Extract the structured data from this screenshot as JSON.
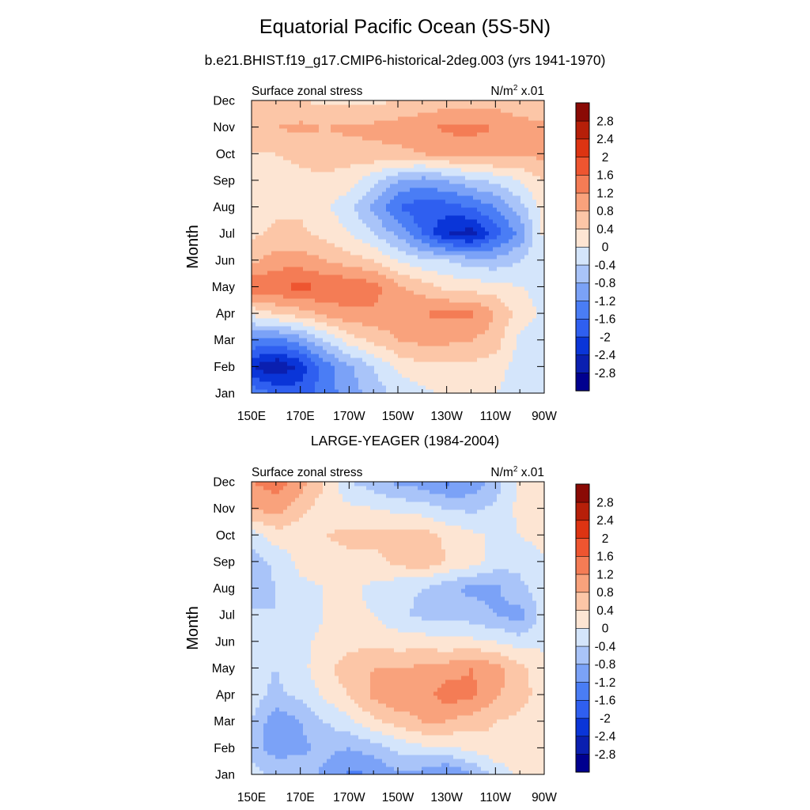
{
  "main_title": "Equatorial Pacific Ocean (5S-5N)",
  "run_subtitle": "b.e21.BHIST.f19_g17.CMIP6-historical-2deg.003 (yrs 1941-1970)",
  "colorbar": {
    "levels": [
      -3.2,
      -2.8,
      -2.4,
      -2.0,
      -1.6,
      -1.2,
      -0.8,
      -0.4,
      0.0,
      0.4,
      0.8,
      1.2,
      1.6,
      2.0,
      2.4,
      2.8,
      3.2
    ],
    "labels": [
      "-2.8",
      "-2.4",
      "-2",
      "-1.6",
      "-1.2",
      "-0.8",
      "-0.4",
      "0",
      "0.4",
      "0.8",
      "1.2",
      "1.6",
      "2",
      "2.4",
      "2.8"
    ],
    "colors": [
      "#00008f",
      "#0a1fb0",
      "#0a35d8",
      "#2f5ff0",
      "#4a7df5",
      "#7ba2f7",
      "#a9c4f9",
      "#d4e5fb",
      "#fde5d3",
      "#fcc6a7",
      "#f9a27c",
      "#f47c55",
      "#ee5530",
      "#dd3412",
      "#b61f09",
      "#8a0a05"
    ]
  },
  "chart_data": [
    {
      "type": "heatmap",
      "title": "",
      "left_label": "Surface zonal stress",
      "unit_base": "N/m",
      "unit_sup": "2",
      "unit_scale": " x.01",
      "ylabel": "Month",
      "xlabel": "",
      "x": [
        150,
        160,
        170,
        180,
        190,
        200,
        210,
        220,
        230,
        240,
        250,
        260,
        270
      ],
      "x_unit": "degrees east",
      "x_ticks": [
        "150E",
        "170E",
        "170W",
        "150W",
        "130W",
        "110W",
        "90W"
      ],
      "y": [
        1,
        2,
        3,
        4,
        5,
        6,
        7,
        8,
        9,
        10,
        11,
        12
      ],
      "y_ticks": [
        "Jan",
        "Feb",
        "Mar",
        "Apr",
        "May",
        "Jun",
        "Jul",
        "Aug",
        "Sep",
        "Oct",
        "Nov",
        "Dec"
      ],
      "z": [
        [
          -1.3,
          -1.6,
          -1.8,
          -1.4,
          -1.0,
          -0.6,
          -0.3,
          -0.1,
          0.1,
          0.2,
          0.0,
          -0.2,
          -0.2
        ],
        [
          -2.4,
          -2.8,
          -2.3,
          -1.4,
          -0.9,
          -0.4,
          0.1,
          0.3,
          0.3,
          0.3,
          0.2,
          -0.2,
          -0.2
        ],
        [
          -1.2,
          -1.4,
          -1.0,
          -0.4,
          0.2,
          0.5,
          0.8,
          0.9,
          0.9,
          0.8,
          0.6,
          -0.1,
          -0.2
        ],
        [
          0.1,
          0.4,
          0.6,
          0.9,
          1.1,
          1.1,
          1.0,
          1.2,
          1.3,
          1.3,
          0.8,
          0.2,
          -0.1
        ],
        [
          1.5,
          1.6,
          1.7,
          1.6,
          1.5,
          1.4,
          0.9,
          0.6,
          0.3,
          0.2,
          0.2,
          0.0,
          -0.1
        ],
        [
          0.7,
          1.0,
          1.0,
          0.8,
          0.6,
          0.4,
          0.0,
          -0.3,
          -0.4,
          -0.6,
          -0.7,
          -0.4,
          0.0
        ],
        [
          0.3,
          0.5,
          0.5,
          0.3,
          0.0,
          -0.4,
          -0.9,
          -1.6,
          -2.4,
          -2.6,
          -1.8,
          -1.1,
          0.1
        ],
        [
          0.2,
          0.3,
          0.3,
          0.1,
          -0.3,
          -0.9,
          -1.6,
          -1.9,
          -1.8,
          -1.6,
          -1.2,
          -0.6,
          0.2
        ],
        [
          0.1,
          0.2,
          0.3,
          0.3,
          0.2,
          -0.3,
          -0.8,
          -1.0,
          -0.8,
          -0.5,
          -0.3,
          0.0,
          0.4
        ],
        [
          0.4,
          0.4,
          0.5,
          0.6,
          0.6,
          0.7,
          0.7,
          0.8,
          0.9,
          1.0,
          1.0,
          0.9,
          0.9
        ],
        [
          0.7,
          0.8,
          0.9,
          0.8,
          0.9,
          0.9,
          1.0,
          1.1,
          1.3,
          1.3,
          1.2,
          1.0,
          0.9
        ],
        [
          0.4,
          0.4,
          0.4,
          0.3,
          0.3,
          0.3,
          0.4,
          0.5,
          0.6,
          0.6,
          0.6,
          0.5,
          0.4
        ]
      ],
      "zlim": [
        -3.2,
        3.2
      ]
    },
    {
      "type": "heatmap",
      "title": "LARGE-YEAGER (1984-2004)",
      "left_label": "Surface zonal stress",
      "unit_base": "N/m",
      "unit_sup": "2",
      "unit_scale": " x.01",
      "ylabel": "Month",
      "xlabel": "",
      "x": [
        150,
        160,
        170,
        180,
        190,
        200,
        210,
        220,
        230,
        240,
        250,
        260,
        270
      ],
      "x_unit": "degrees east",
      "x_ticks": [
        "150E",
        "170E",
        "170W",
        "150W",
        "130W",
        "110W",
        "90W"
      ],
      "y": [
        1,
        2,
        3,
        4,
        5,
        6,
        7,
        8,
        9,
        10,
        11,
        12
      ],
      "y_ticks": [
        "Jan",
        "Feb",
        "Mar",
        "Apr",
        "May",
        "Jun",
        "Jul",
        "Aug",
        "Sep",
        "Oct",
        "Nov",
        "Dec"
      ],
      "z": [
        [
          -0.2,
          -0.5,
          -0.5,
          -0.9,
          -1.3,
          -1.2,
          -0.9,
          -1.0,
          -1.3,
          -0.8,
          -0.3,
          0.1,
          0.2
        ],
        [
          -0.6,
          -1.0,
          -0.9,
          -0.7,
          -0.8,
          -0.6,
          -0.3,
          -0.1,
          -0.1,
          0.1,
          0.3,
          0.3,
          0.2
        ],
        [
          -0.4,
          -1.1,
          -0.8,
          -0.4,
          -0.1,
          0.3,
          0.6,
          0.8,
          0.8,
          0.6,
          0.4,
          0.3,
          0.2
        ],
        [
          -0.2,
          -0.5,
          -0.3,
          0.1,
          0.4,
          0.9,
          1.1,
          1.0,
          1.4,
          1.3,
          0.9,
          0.5,
          0.3
        ],
        [
          -0.3,
          -0.4,
          -0.1,
          0.2,
          0.7,
          0.8,
          0.8,
          0.9,
          1.0,
          1.2,
          1.0,
          0.5,
          0.2
        ],
        [
          -0.2,
          -0.3,
          -0.1,
          0.1,
          0.2,
          0.3,
          0.2,
          0.2,
          0.1,
          0.1,
          0.0,
          -0.2,
          -0.1
        ],
        [
          -0.3,
          -0.4,
          -0.2,
          0.0,
          0.1,
          0.0,
          -0.3,
          -0.5,
          -0.5,
          -0.6,
          -0.8,
          -1.0,
          -0.2
        ],
        [
          -0.7,
          -0.4,
          -0.1,
          0.0,
          0.1,
          -0.1,
          -0.3,
          -0.4,
          -0.7,
          -0.9,
          -0.9,
          -0.5,
          -0.2
        ],
        [
          -0.6,
          -0.3,
          0.1,
          0.2,
          0.3,
          0.3,
          0.5,
          0.7,
          0.4,
          0.2,
          -0.2,
          -0.3,
          -0.1
        ],
        [
          -0.2,
          0.2,
          0.2,
          0.4,
          0.5,
          0.5,
          0.5,
          0.6,
          0.3,
          0.1,
          -0.1,
          0.0,
          0.2
        ],
        [
          0.8,
          1.0,
          0.5,
          0.2,
          0.1,
          0.0,
          -0.1,
          -0.2,
          -0.4,
          -0.5,
          -0.3,
          0.1,
          0.3
        ],
        [
          1.2,
          1.4,
          1.0,
          0.4,
          -0.4,
          -0.6,
          -0.9,
          -1.0,
          -1.3,
          -1.1,
          -0.6,
          0.1,
          0.3
        ]
      ],
      "zlim": [
        -3.2,
        3.2
      ]
    }
  ]
}
